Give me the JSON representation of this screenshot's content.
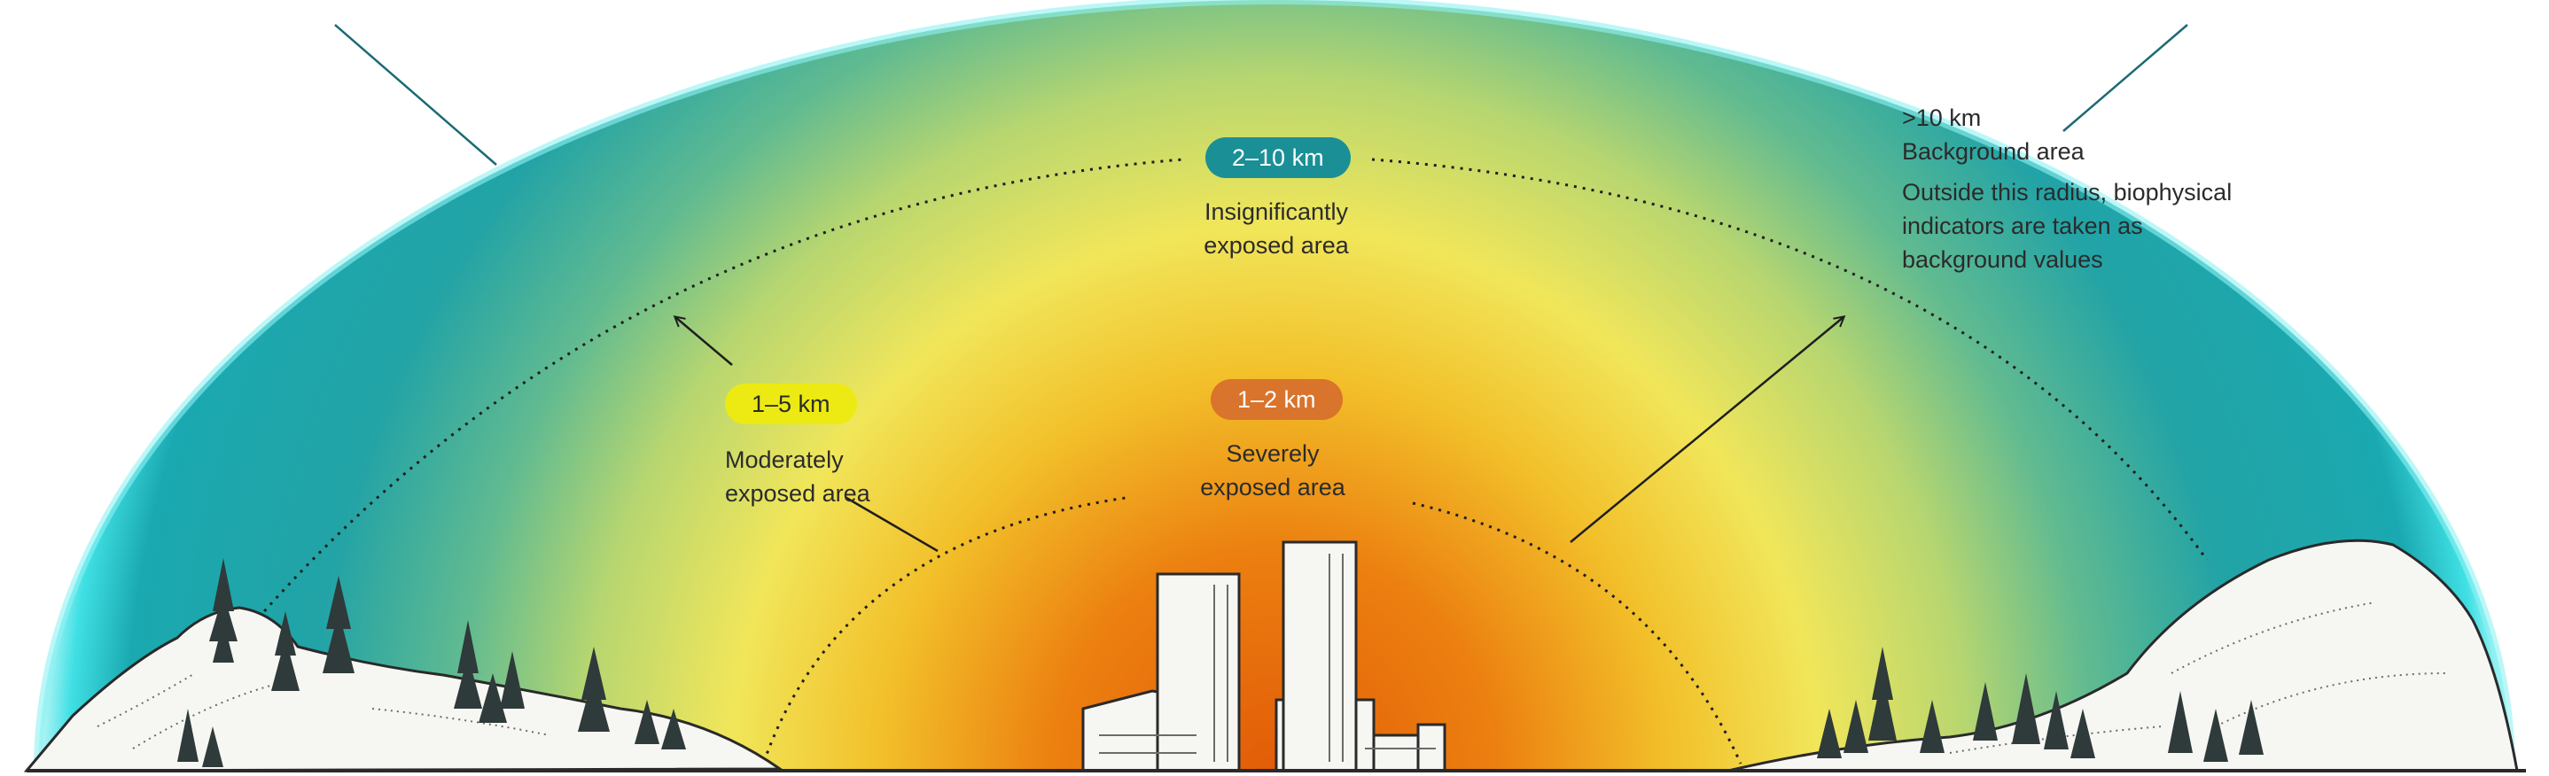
{
  "zones": {
    "severe": {
      "distance": "1–2 km",
      "line1": "Severely",
      "line2": "exposed area",
      "color": "#d9742c"
    },
    "moderate": {
      "distance": "1–5 km",
      "line1": "Moderately",
      "line2": "exposed area",
      "color": "#ecea12"
    },
    "insignificant": {
      "distance": "2–10 km",
      "line1": "Insignificantly",
      "line2": "exposed area",
      "color": "#1a8f96"
    }
  },
  "background": {
    "distance": ">10 km",
    "title": "Background area",
    "line1": "Outside this radius, biophysical",
    "line2": "indicators are taken as",
    "line3": "background values"
  },
  "colors": {
    "inner": "#e9650f",
    "middle": "#f3e64a",
    "outer": "#18a7ad",
    "edge": "#44e6e8"
  }
}
